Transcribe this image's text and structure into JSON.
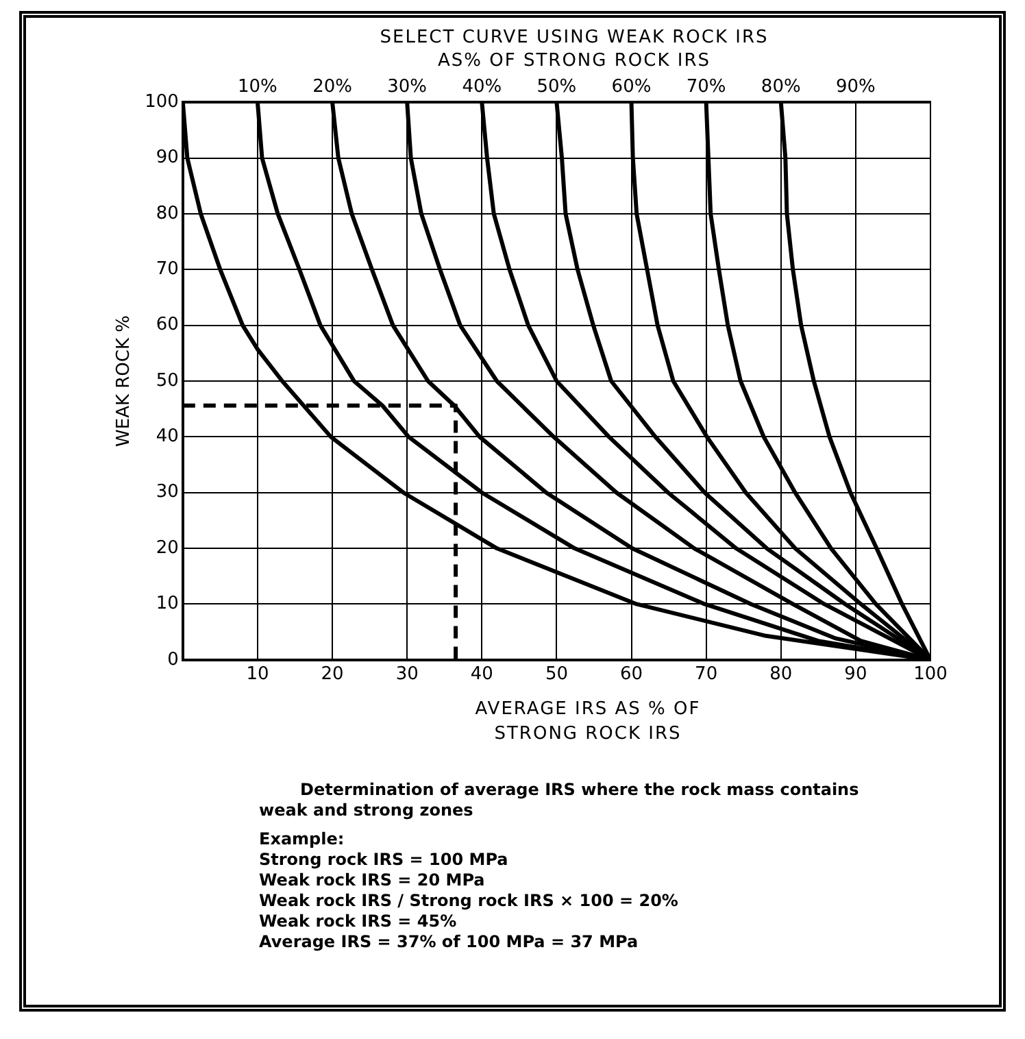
{
  "chart_data": {
    "type": "line",
    "title": "SELECT CURVE USING WEAK ROCK IRS AS% OF STRONG ROCK IRS",
    "xlabel": "AVERAGE IRS AS % OF STRONG ROCK IRS",
    "ylabel": "WEAK ROCK %",
    "xlim": [
      0,
      100
    ],
    "xticks": [
      10,
      20,
      30,
      40,
      50,
      60,
      70,
      80,
      90,
      100
    ],
    "ylim": [
      0,
      100
    ],
    "yticks": [
      0,
      10,
      20,
      30,
      40,
      50,
      60,
      70,
      80,
      90,
      100
    ],
    "x2lim": [
      0,
      100
    ],
    "x2ticks": [
      {
        "value": 10,
        "label": "10%"
      },
      {
        "value": 20,
        "label": "20%"
      },
      {
        "value": 30,
        "label": "30%"
      },
      {
        "value": 40,
        "label": "40%"
      },
      {
        "value": 50,
        "label": "50%"
      },
      {
        "value": 60,
        "label": "60%"
      },
      {
        "value": 70,
        "label": "70%"
      },
      {
        "value": 80,
        "label": "80%"
      },
      {
        "value": 90,
        "label": "90%"
      }
    ],
    "grid": true,
    "legend": false,
    "series": [
      {
        "color": "#000000",
        "x": [
          0,
          0.6,
          2.4,
          5,
          8,
          10,
          13.3,
          19.8,
          29.5,
          42,
          60.7,
          78,
          100
        ],
        "values": [
          100,
          90,
          80,
          70,
          60,
          55.7,
          50,
          40,
          30,
          20,
          10,
          4.3,
          0
        ]
      },
      {
        "color": "#000000",
        "x": [
          10,
          10.6,
          12.7,
          15.6,
          18.4,
          22.9,
          26.7,
          30.2,
          40,
          52.4,
          69.8,
          85,
          100
        ],
        "values": [
          100,
          90,
          80,
          70,
          60,
          50,
          45.6,
          40,
          30,
          20,
          10,
          3.4,
          0
        ]
      },
      {
        "color": "#000000",
        "x": [
          20,
          20.8,
          22.6,
          25.3,
          28.1,
          32.8,
          36.3,
          39.7,
          48.6,
          60.1,
          76,
          87.2,
          100
        ],
        "values": [
          100,
          90,
          80,
          70,
          60,
          50,
          45.6,
          40,
          30,
          20,
          10,
          3.9,
          0
        ]
      },
      {
        "color": "#000000",
        "x": [
          30,
          30.5,
          31.9,
          34.4,
          37.1,
          42,
          49.6,
          58,
          68.4,
          81.6,
          90.7,
          100
        ],
        "values": [
          100,
          90,
          80,
          70,
          60,
          50,
          40,
          30,
          20,
          10,
          3.4,
          0
        ]
      },
      {
        "color": "#000000",
        "x": [
          40,
          40.7,
          41.6,
          43.7,
          46.2,
          50,
          57,
          64.9,
          74,
          85.8,
          100
        ],
        "values": [
          100,
          90,
          80,
          70,
          60,
          50,
          40,
          30,
          20,
          10,
          0
        ]
      },
      {
        "color": "#000000",
        "x": [
          50,
          50.7,
          51.2,
          52.8,
          54.9,
          57.3,
          63.2,
          69.8,
          78.1,
          88.6,
          100
        ],
        "values": [
          100,
          90,
          80,
          70,
          60,
          50,
          40,
          30,
          20,
          10,
          0
        ]
      },
      {
        "color": "#000000",
        "x": [
          60,
          60.2,
          60.7,
          62.1,
          63.5,
          65.6,
          70.1,
          75.3,
          81.9,
          90.7,
          100
        ],
        "values": [
          100,
          90,
          80,
          70,
          60,
          50,
          40,
          30,
          20,
          10,
          0
        ]
      },
      {
        "color": "#000000",
        "x": [
          70,
          70.3,
          70.6,
          71.7,
          72.9,
          74.6,
          77.7,
          81.9,
          86.7,
          92.7,
          100
        ],
        "values": [
          100,
          90,
          80,
          70,
          60,
          50,
          40,
          30,
          20,
          10,
          0
        ]
      },
      {
        "color": "#000000",
        "x": [
          80,
          80.6,
          80.8,
          81.6,
          82.7,
          84.4,
          86.5,
          89.3,
          92.8,
          96.2,
          100
        ],
        "values": [
          100,
          90,
          80,
          70,
          60,
          50,
          40,
          30,
          20,
          10,
          0
        ]
      },
      {
        "color": "#000000",
        "line_style": "dashed",
        "x": [
          0,
          36.5,
          36.5
        ],
        "values": [
          45.6,
          45.6,
          0
        ]
      }
    ],
    "annotations": [
      "Determination of average IRS where the rock mass contains weak and strong zones",
      "Example:",
      "Strong rock IRS = 100 MPa",
      "Weak rock IRS = 20 MPa",
      "Weak rock IRS / Strong rock IRS × 100 = 20%",
      "Weak rock IRS = 45%",
      "Average IRS = 37% of 100 MPa = 37 MPa"
    ]
  }
}
